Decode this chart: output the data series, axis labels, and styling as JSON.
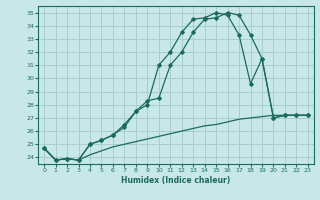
{
  "title": "",
  "xlabel": "Humidex (Indice chaleur)",
  "ylabel": "",
  "background_color": "#c8e8e8",
  "grid_color": "#aacccc",
  "line_color": "#1a6b5a",
  "xlim": [
    -0.5,
    23.5
  ],
  "ylim": [
    23.5,
    35.5
  ],
  "yticks": [
    24,
    25,
    26,
    27,
    28,
    29,
    30,
    31,
    32,
    33,
    34,
    35
  ],
  "xticks": [
    0,
    1,
    2,
    3,
    4,
    5,
    6,
    7,
    8,
    9,
    10,
    11,
    12,
    13,
    14,
    15,
    16,
    17,
    18,
    19,
    20,
    21,
    22,
    23
  ],
  "series1_x": [
    0,
    1,
    2,
    3,
    4,
    5,
    6,
    7,
    8,
    9,
    10,
    11,
    12,
    13,
    14,
    15,
    16,
    17,
    18,
    19,
    20,
    21,
    22,
    23
  ],
  "series1_y": [
    24.7,
    23.8,
    23.9,
    23.8,
    25.0,
    25.3,
    25.7,
    26.5,
    27.5,
    28.0,
    31.0,
    32.0,
    33.5,
    34.5,
    34.6,
    35.0,
    34.8,
    33.3,
    29.6,
    31.5,
    27.0,
    27.2,
    27.2,
    27.2
  ],
  "series2_x": [
    0,
    1,
    2,
    3,
    4,
    5,
    6,
    7,
    8,
    9,
    10,
    11,
    12,
    13,
    14,
    15,
    16,
    17,
    18,
    19,
    20,
    21,
    22,
    23
  ],
  "series2_y": [
    24.7,
    23.8,
    23.9,
    23.8,
    25.0,
    25.3,
    25.7,
    26.3,
    27.5,
    28.3,
    28.5,
    31.0,
    32.0,
    33.5,
    34.5,
    34.6,
    35.0,
    34.8,
    33.3,
    31.5,
    27.0,
    27.2,
    27.2,
    27.2
  ],
  "series3_x": [
    0,
    1,
    2,
    3,
    4,
    5,
    6,
    7,
    8,
    9,
    10,
    11,
    12,
    13,
    14,
    15,
    16,
    17,
    18,
    19,
    20,
    21,
    22,
    23
  ],
  "series3_y": [
    24.7,
    23.8,
    23.9,
    23.8,
    24.2,
    24.5,
    24.8,
    25.0,
    25.2,
    25.4,
    25.6,
    25.8,
    26.0,
    26.2,
    26.4,
    26.5,
    26.7,
    26.9,
    27.0,
    27.1,
    27.2,
    27.2,
    27.2,
    27.2
  ]
}
